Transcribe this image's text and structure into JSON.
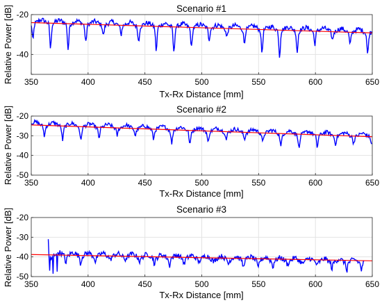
{
  "chart_data": [
    {
      "type": "line",
      "title": "Scenario #1",
      "xlabel": "Tx-Rx Distance [mm]",
      "ylabel": "Relative Power [dB]",
      "xlim": [
        350,
        650
      ],
      "ylim": [
        -50,
        -20
      ],
      "xticks": [
        350,
        400,
        450,
        500,
        550,
        600,
        650
      ],
      "yticks": [
        -20,
        -30,
        -40,
        -50
      ],
      "ytick_labels": [
        "-20",
        "",
        "-40",
        ""
      ],
      "grid": true,
      "colors": {
        "measured": "#0000ff",
        "fit": "#ff0000"
      },
      "series": [
        {
          "kind": "measured",
          "base": [
            350,
            -23.5
          ],
          "end": [
            650,
            -28.5
          ],
          "periodic_dip_spacing_mm": 15.5,
          "dip_depth_db": [
            4,
            13
          ],
          "noise_db": 1.2,
          "x_start": 350,
          "x_end": 650
        },
        {
          "kind": "fit",
          "x": [
            350,
            650
          ],
          "y": [
            -24.0,
            -29.2
          ]
        }
      ]
    },
    {
      "type": "line",
      "title": "Scenario #2",
      "xlabel": "Tx-Rx Distance [mm]",
      "ylabel": "Relative Power [dB]",
      "xlim": [
        350,
        650
      ],
      "ylim": [
        -50,
        -20
      ],
      "xticks": [
        350,
        400,
        450,
        500,
        550,
        600,
        650
      ],
      "yticks": [
        -20,
        -30,
        -40,
        -50
      ],
      "ytick_labels": [
        "-20",
        "-30",
        "-40",
        "-50"
      ],
      "grid": true,
      "colors": {
        "measured": "#0000ff",
        "fit": "#ff0000"
      },
      "series": [
        {
          "kind": "measured",
          "base": [
            350,
            -24.0
          ],
          "end": [
            650,
            -30.0
          ],
          "periodic_dip_spacing_mm": 16,
          "dip_depth_db": [
            3,
            7
          ],
          "noise_db": 1.0,
          "x_start": 350,
          "x_end": 650
        },
        {
          "kind": "fit",
          "x": [
            350,
            650
          ],
          "y": [
            -24.5,
            -30.5
          ]
        }
      ]
    },
    {
      "type": "line",
      "title": "Scenario #3",
      "xlabel": "Tx-Rx Distance [mm]",
      "ylabel": "Relative Power [dB]",
      "xlim": [
        350,
        650
      ],
      "ylim": [
        -50,
        -20
      ],
      "xticks": [
        350,
        400,
        450,
        500,
        550,
        600,
        650
      ],
      "yticks": [
        -20,
        -30,
        -40,
        -50
      ],
      "ytick_labels": [
        "-20",
        "-30",
        "-40",
        "-50"
      ],
      "grid": true,
      "colors": {
        "measured": "#0000ff",
        "fit": "#ff0000"
      },
      "series": [
        {
          "kind": "measured",
          "base": [
            365,
            -38.5
          ],
          "end": [
            643,
            -42.5
          ],
          "periodic_dip_spacing_mm": 13,
          "dip_depth_db": [
            1,
            4
          ],
          "noise_db": 1.3,
          "x_start": 365,
          "x_end": 643,
          "spikes": [
            [
              365,
              -31.0
            ],
            [
              366,
              -47.0
            ],
            [
              369,
              -48.5
            ],
            [
              373,
              -47.5
            ]
          ]
        },
        {
          "kind": "fit",
          "x": [
            350,
            650
          ],
          "y": [
            -38.8,
            -42.0
          ]
        }
      ]
    }
  ]
}
